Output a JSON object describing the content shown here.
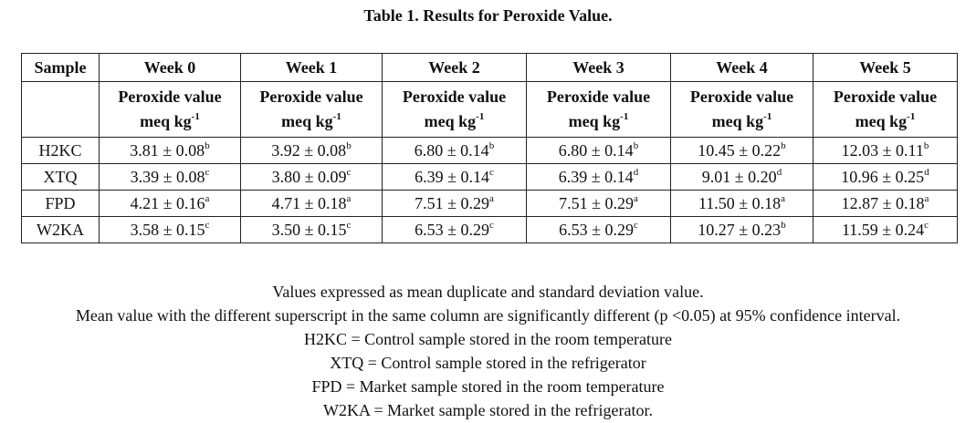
{
  "title": "Table 1. Results for Peroxide Value.",
  "table": {
    "sample_header": "Sample",
    "weeks": [
      "Week 0",
      "Week 1",
      "Week 2",
      "Week 3",
      "Week 4",
      "Week 5"
    ],
    "unit_line1": "Peroxide value",
    "unit_line2": "meq kg",
    "unit_exp": "-1",
    "rows": [
      {
        "sample": "H2KC",
        "cells": [
          {
            "v": "3.81 ± 0.08",
            "s": "b"
          },
          {
            "v": "3.92 ± 0.08",
            "s": "b"
          },
          {
            "v": "6.80 ± 0.14",
            "s": "b"
          },
          {
            "v": "6.80 ± 0.14",
            "s": "b"
          },
          {
            "v": "10.45 ± 0.22",
            "s": "b"
          },
          {
            "v": "12.03 ± 0.11",
            "s": "b"
          }
        ]
      },
      {
        "sample": "XTQ",
        "cells": [
          {
            "v": "3.39 ± 0.08",
            "s": "c"
          },
          {
            "v": "3.80 ± 0.09",
            "s": "c"
          },
          {
            "v": "6.39 ± 0.14",
            "s": "c"
          },
          {
            "v": "6.39 ± 0.14",
            "s": "d"
          },
          {
            "v": "9.01 ± 0.20",
            "s": "d"
          },
          {
            "v": "10.96 ± 0.25",
            "s": "d"
          }
        ]
      },
      {
        "sample": "FPD",
        "cells": [
          {
            "v": "4.21 ± 0.16",
            "s": "a"
          },
          {
            "v": "4.71 ± 0.18",
            "s": "a"
          },
          {
            "v": "7.51 ± 0.29",
            "s": "a"
          },
          {
            "v": "7.51 ± 0.29",
            "s": "a"
          },
          {
            "v": "11.50 ± 0.18",
            "s": "a"
          },
          {
            "v": "12.87 ± 0.18",
            "s": "a"
          }
        ]
      },
      {
        "sample": "W2KA",
        "cells": [
          {
            "v": "3.58 ± 0.15",
            "s": "c"
          },
          {
            "v": "3.50 ± 0.15",
            "s": "c"
          },
          {
            "v": "6.53 ± 0.29",
            "s": "c"
          },
          {
            "v": "6.53 ± 0.29",
            "s": "c"
          },
          {
            "v": "10.27 ± 0.23",
            "s": "b"
          },
          {
            "v": "11.59 ± 0.24",
            "s": "c"
          }
        ]
      }
    ]
  },
  "notes": [
    "Values expressed as mean duplicate and standard deviation value.",
    "Mean value with the different superscript in the same column are significantly different (p <0.05) at 95% confidence interval.",
    "H2KC = Control sample stored in the room temperature",
    "XTQ = Control sample stored in the refrigerator",
    "FPD = Market sample stored in the room temperature",
    "W2KA = Market sample stored in the refrigerator."
  ]
}
